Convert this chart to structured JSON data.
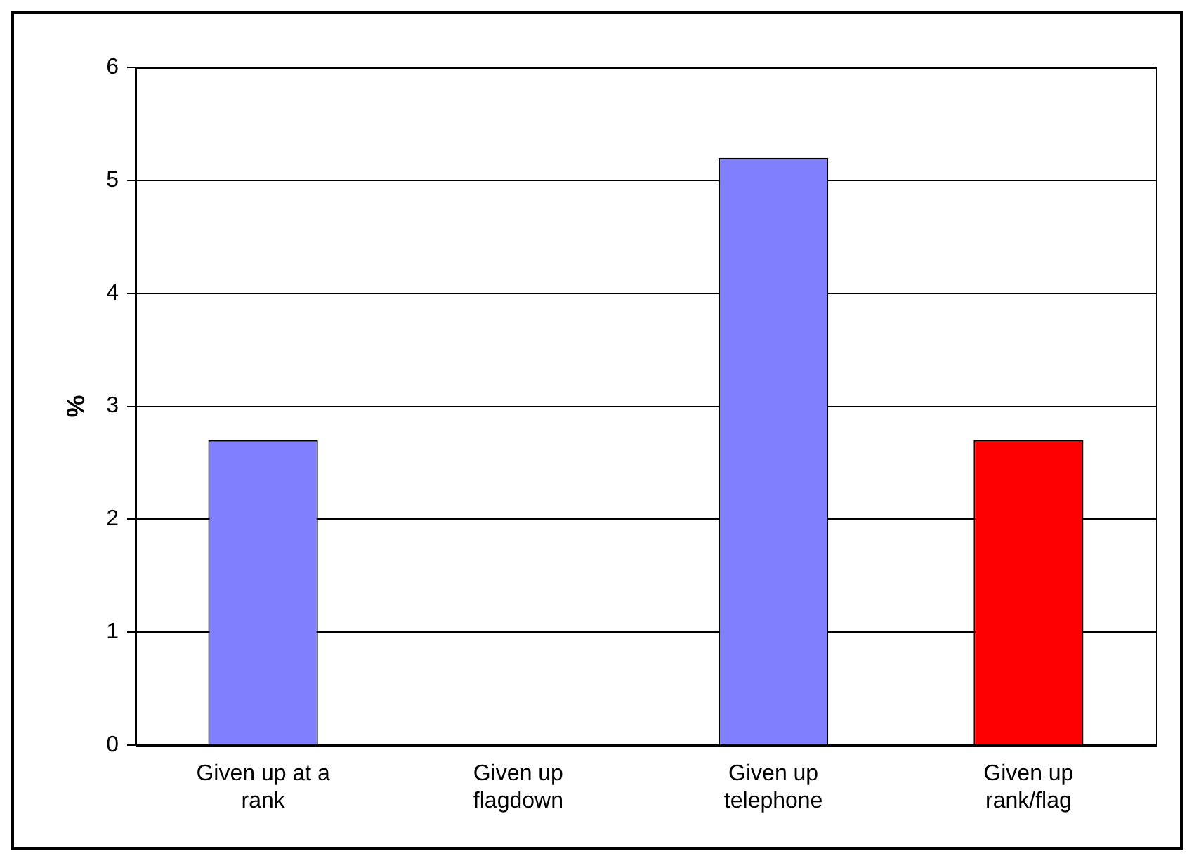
{
  "chart_data": {
    "type": "bar",
    "ylabel": "%",
    "categories": [
      "Given up at a rank",
      "Given up flagdown",
      "Given up telephone",
      "Given up rank/flag"
    ],
    "values": [
      2.7,
      0,
      5.2,
      2.7
    ],
    "colors": [
      "#8080ff",
      "#8080ff",
      "#8080ff",
      "#ff0000"
    ],
    "ylim": [
      0,
      6
    ],
    "yticks": [
      0,
      1,
      2,
      3,
      4,
      5,
      6
    ],
    "grid": "y"
  }
}
